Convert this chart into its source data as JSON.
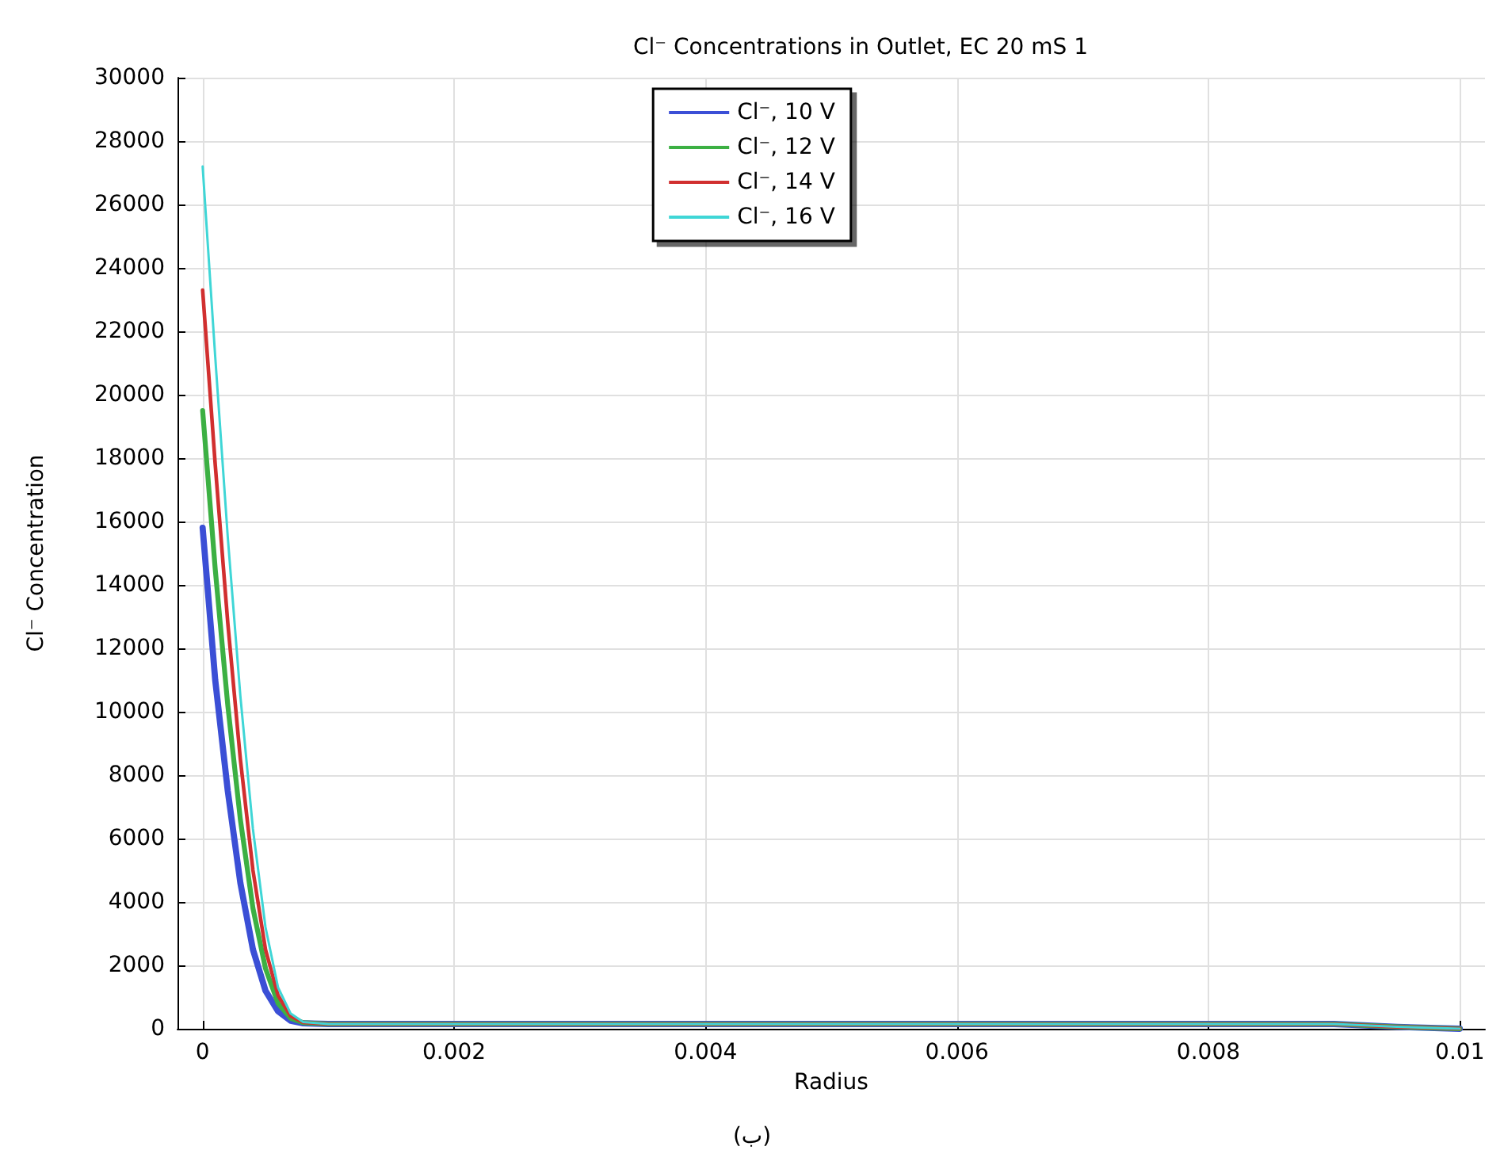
{
  "chart_data": {
    "type": "line",
    "title": "Cl⁻ Concentrations in Outlet, EC 20 mS 1",
    "xlabel": "Radius",
    "ylabel": "Cl⁻ Concentration",
    "annotations": [
      "(ب)"
    ],
    "x": [
      0,
      0.0001,
      0.0002,
      0.0003,
      0.0004,
      0.0005,
      0.0006,
      0.0007,
      0.0008,
      0.001,
      0.009,
      0.0095,
      0.01
    ],
    "series": [
      {
        "name": "Cl⁻, 10 V",
        "color": "#3b4fd6",
        "values": [
          15800,
          11000,
          7500,
          4600,
          2500,
          1200,
          550,
          250,
          170,
          150,
          150,
          60,
          0
        ]
      },
      {
        "name": "Cl⁻, 12 V",
        "color": "#3cb043",
        "values": [
          19500,
          14500,
          10200,
          6600,
          3800,
          1900,
          800,
          330,
          190,
          150,
          150,
          60,
          0
        ]
      },
      {
        "name": "Cl⁻, 14 V",
        "color": "#d12f2f",
        "values": [
          23300,
          17800,
          12800,
          8500,
          5000,
          2500,
          1050,
          400,
          200,
          150,
          150,
          60,
          0
        ]
      },
      {
        "name": "Cl⁻, 16 V",
        "color": "#3fd6d6",
        "values": [
          27200,
          21200,
          15500,
          10500,
          6300,
          3200,
          1300,
          480,
          210,
          150,
          150,
          60,
          0
        ]
      }
    ],
    "xlim": [
      -0.0002,
      0.0102
    ],
    "xticks": [
      0,
      0.002,
      0.004,
      0.006,
      0.008,
      0.01
    ],
    "ylim": [
      0,
      30000
    ],
    "yticks": [
      0,
      2000,
      4000,
      6000,
      8000,
      10000,
      12000,
      14000,
      16000,
      18000,
      20000,
      22000,
      24000,
      26000,
      28000,
      30000
    ],
    "grid": true,
    "legend": "top",
    "marker": "none",
    "line_style": "solid"
  }
}
